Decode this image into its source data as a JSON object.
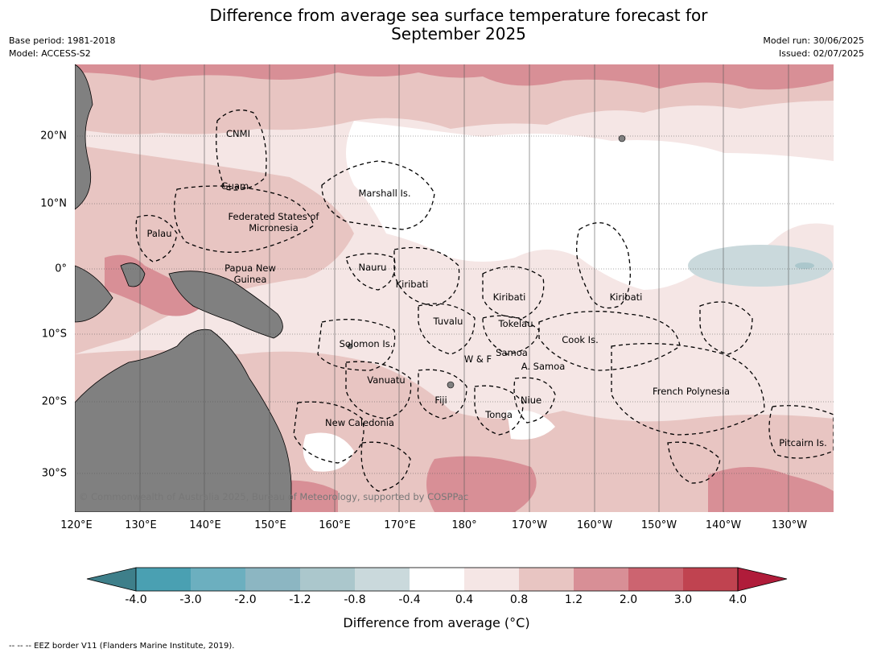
{
  "title": {
    "line1": "Difference from average sea surface temperature forecast for",
    "line2": "September 2025"
  },
  "meta": {
    "base_period": "Base period: 1981-2018",
    "model": "Model: ACCESS-S2",
    "model_run": "Model run: 30/06/2025",
    "issued": "Issued: 02/07/2025"
  },
  "axes": {
    "lat_labels": [
      "20°N",
      "10°N",
      "0°",
      "10°S",
      "20°S",
      "30°S"
    ],
    "lon_labels": [
      "120°E",
      "130°E",
      "140°E",
      "150°E",
      "160°E",
      "170°E",
      "180°",
      "170°W",
      "160°W",
      "150°W",
      "140°W",
      "130°W"
    ]
  },
  "places": [
    "CNMI",
    "Guam",
    "Marshall Is.",
    "Federated States of Micronesia",
    "Palau",
    "Nauru",
    "Papua New Guinea",
    "Kiribati",
    "Kiribati",
    "Kiribati",
    "Tuvalu",
    "Tokelau",
    "Cook Is.",
    "Solomon Is.",
    "W & F",
    "Samoa",
    "A. Samoa",
    "Vanuatu",
    "Fiji",
    "Niue",
    "Tonga",
    "French Polynesia",
    "New Caledonia",
    "Pitcairn Is."
  ],
  "copyright": "© Commonwealth of Australia 2025, Bureau of Meteorology, supported by COSPPac",
  "colorbar": {
    "ticks": [
      "-4.0",
      "-3.0",
      "-2.0",
      "-1.2",
      "-0.8",
      "-0.4",
      "0.4",
      "0.8",
      "1.2",
      "2.0",
      "3.0",
      "4.0"
    ],
    "colors": [
      "#3e7f8a",
      "#4aa0b2",
      "#6cafbf",
      "#8cb6c2",
      "#abc7cc",
      "#cad9dc",
      "#ffffff",
      "#f5e6e5",
      "#e8c5c2",
      "#d88f96",
      "#cc6470",
      "#c04350",
      "#b01c3a"
    ],
    "label": "Difference from average (°C)"
  },
  "footnote": "--  --  -- EEZ border V11 (Flanders Marine Institute, 2019).",
  "legend_colors": {
    "land": "#808080",
    "ocean_warm_light": "#f5e6e5",
    "ocean_warm_mid": "#e8c5c2",
    "ocean_warm_strong": "#d88f96",
    "ocean_neutral": "#ffffff",
    "ocean_cool": "#cad9dc"
  }
}
